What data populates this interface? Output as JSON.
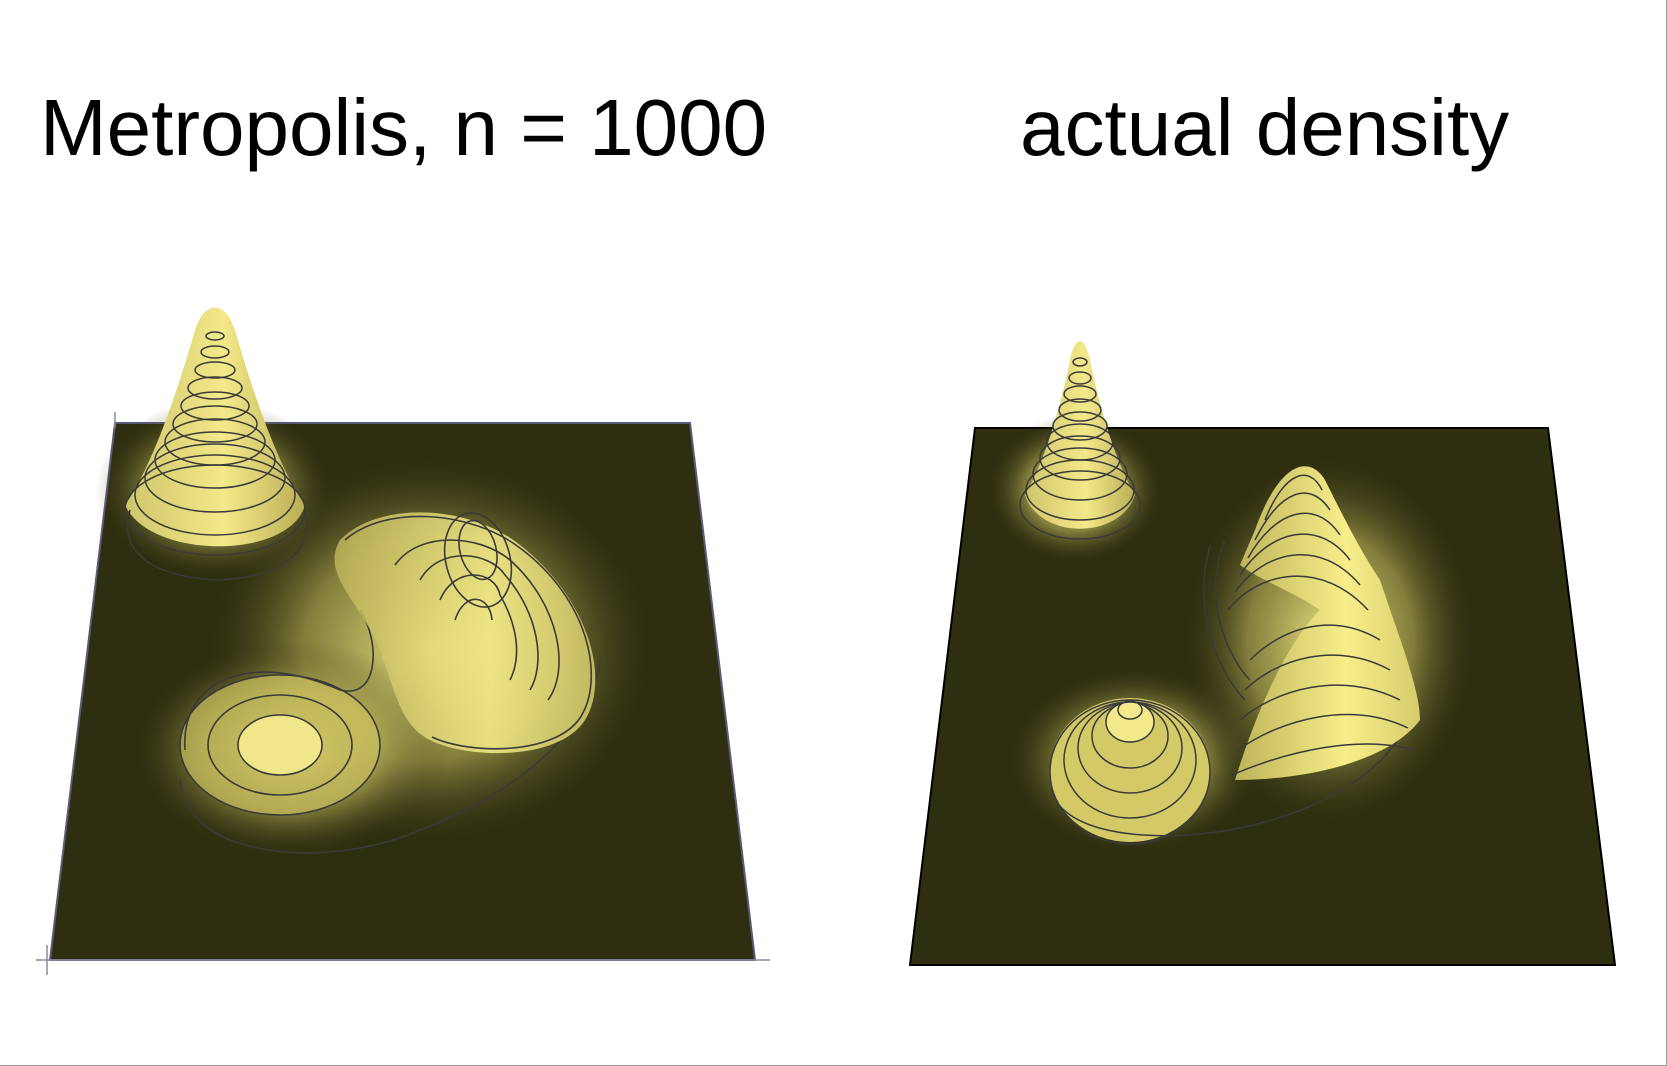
{
  "panels": {
    "left": {
      "title": "Metropolis, n = 1000"
    },
    "right": {
      "title": "actual density"
    }
  },
  "colors": {
    "base_plane": "#2e2e10",
    "peak_highlight": "#f7ee8a",
    "contour_line": "#3a3a3a",
    "background": "#ffffff"
  }
}
